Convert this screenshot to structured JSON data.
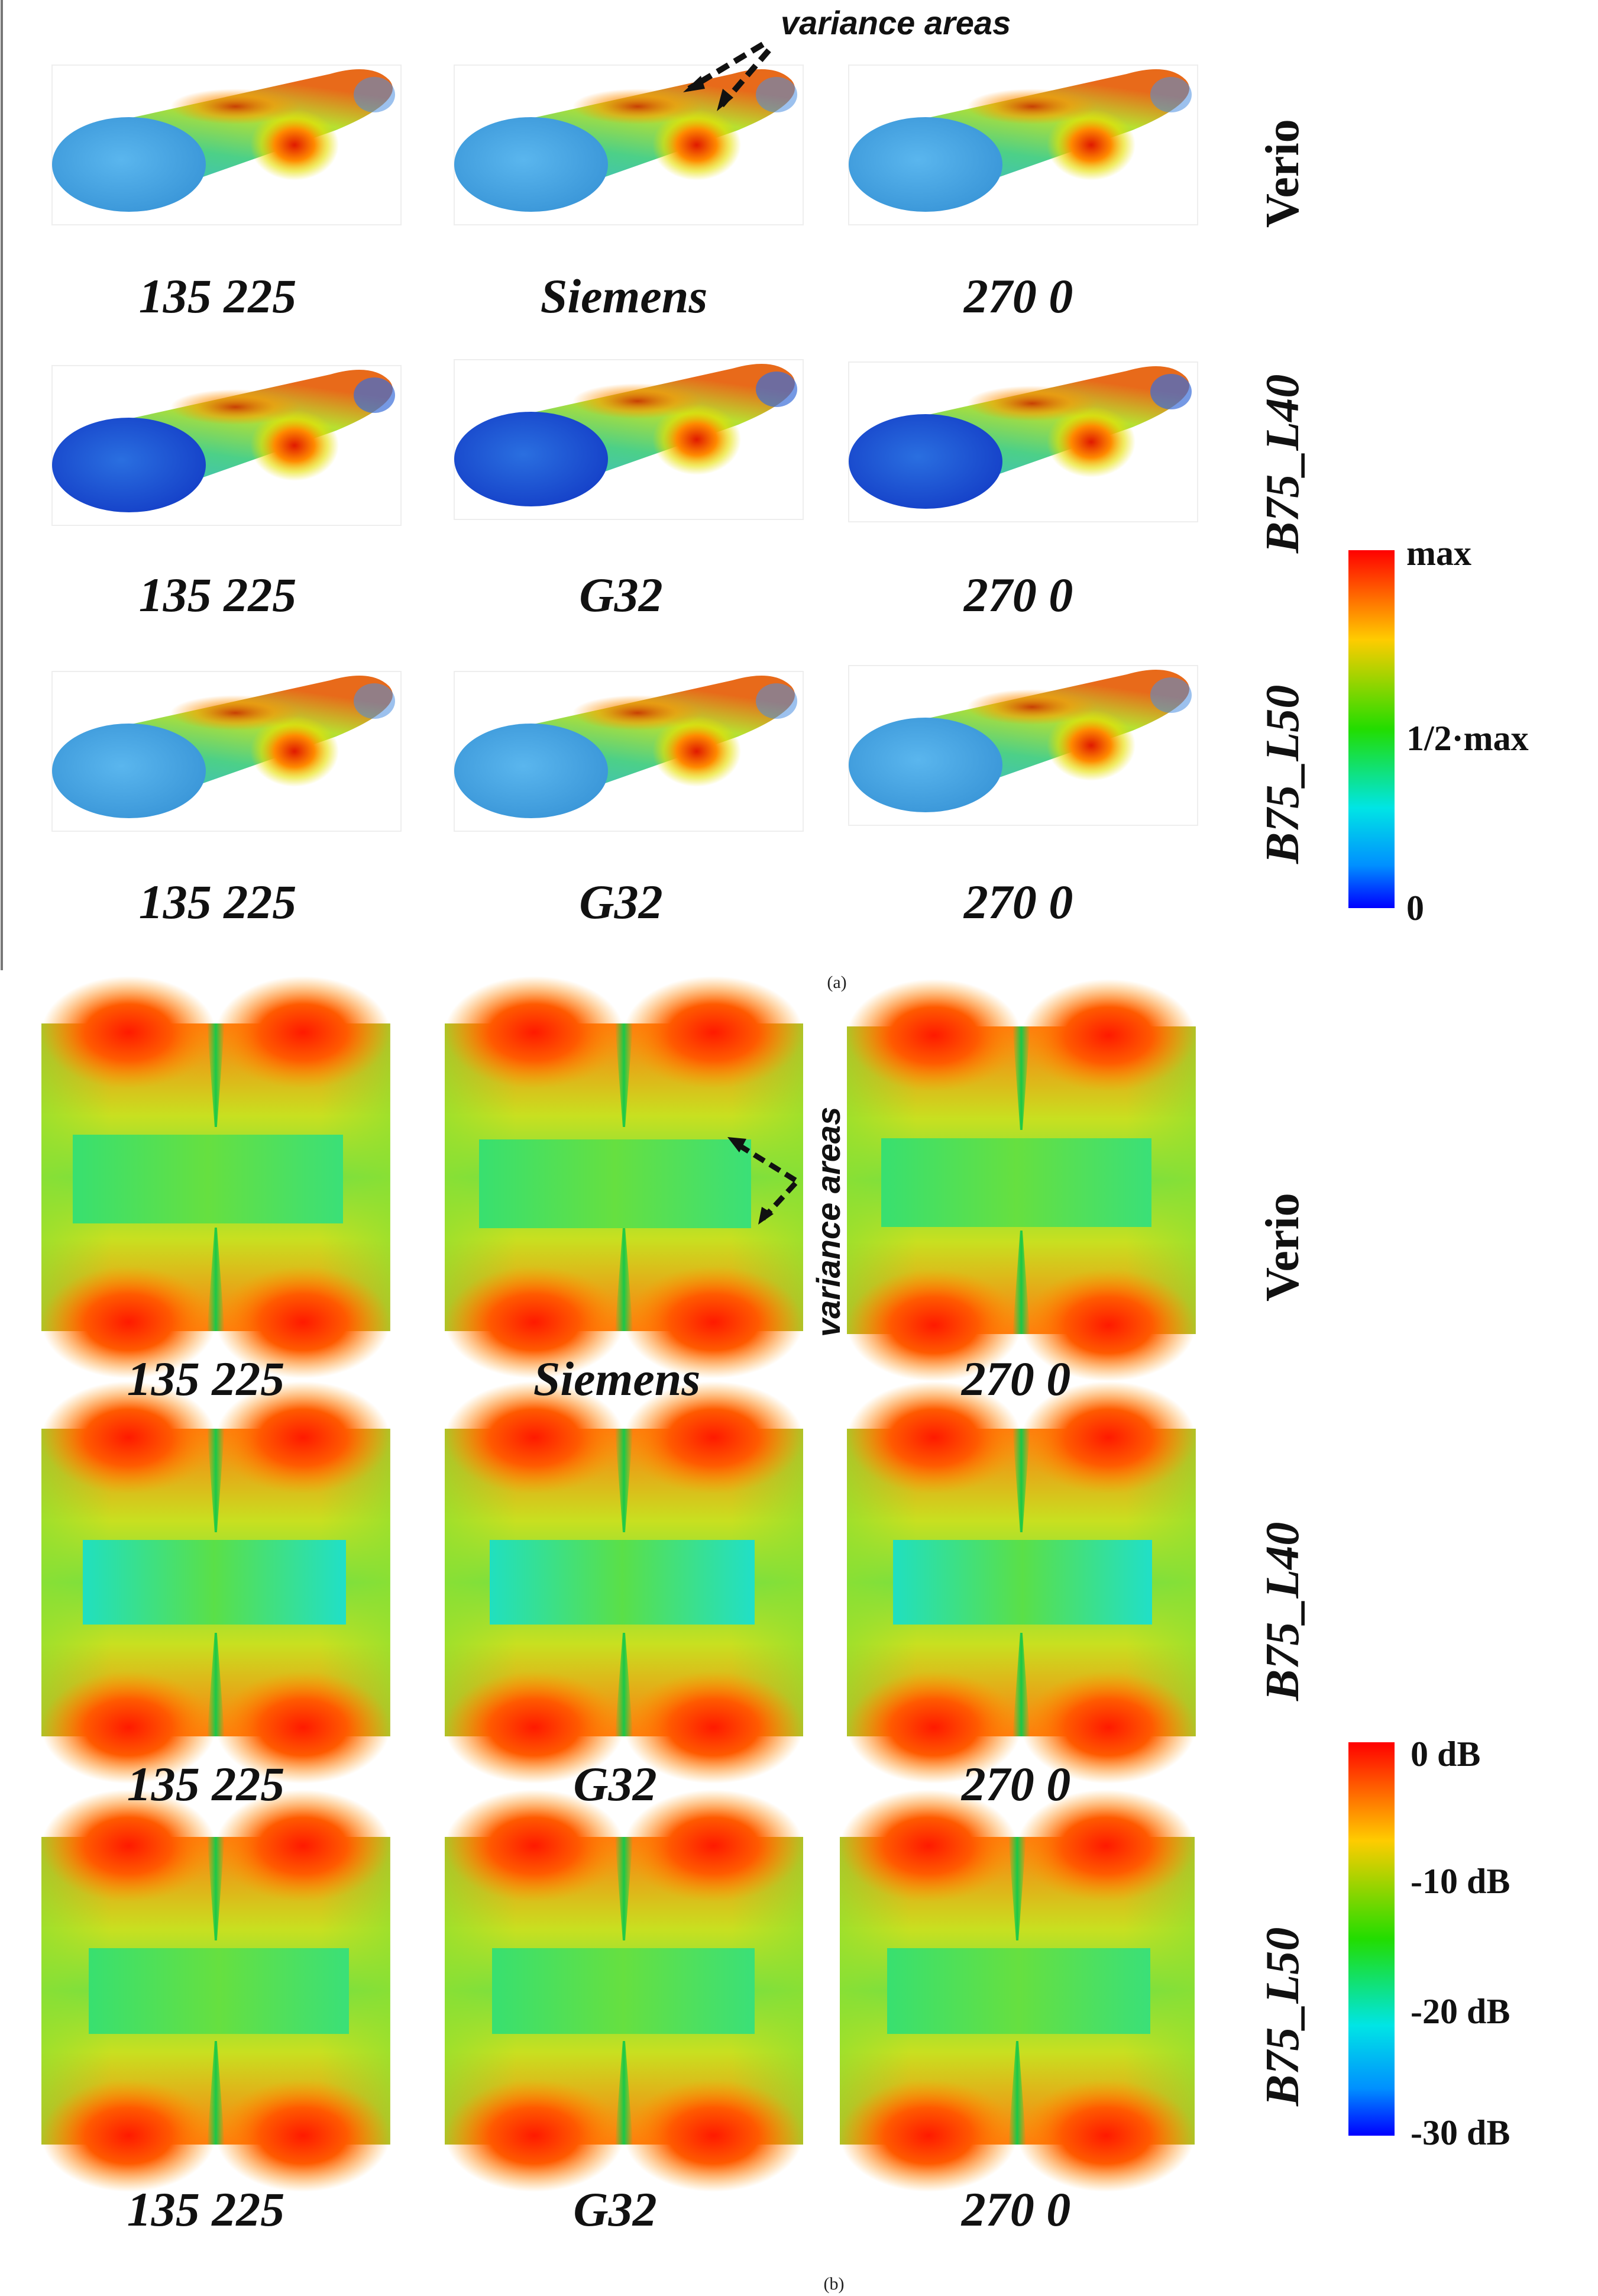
{
  "panel_a": {
    "caption": "(a)",
    "annotation": "variance areas",
    "rows": [
      {
        "group": "Verio",
        "labels": [
          "135 225",
          "Siemens",
          "270 0"
        ]
      },
      {
        "group": "B75_L40",
        "labels": [
          "135 225",
          "G32",
          "270 0"
        ]
      },
      {
        "group": "B75_L50",
        "labels": [
          "135 225",
          "G32",
          "270 0"
        ]
      }
    ],
    "colorbar": {
      "top": "max",
      "mid": "1/2·max",
      "bottom": "0"
    }
  },
  "panel_b": {
    "caption": "(b)",
    "annotation": "variance areas",
    "rows": [
      {
        "group": "Verio",
        "labels": [
          "135 225",
          "Siemens",
          "270 0"
        ]
      },
      {
        "group": "B75_L40",
        "labels": [
          "135 225",
          "G32",
          "270 0"
        ]
      },
      {
        "group": "B75_L50",
        "labels": [
          "135 225",
          "G32",
          "270 0"
        ]
      }
    ],
    "colorbar": {
      "ticks": [
        "0 dB",
        "-10 dB",
        "-20 dB",
        "-30 dB"
      ]
    }
  },
  "colors": {
    "red": "#ff1a00",
    "orange": "#ff8c00",
    "yellow": "#e8f000",
    "green": "#22dd22",
    "cyan": "#00e0f0",
    "blue": "#0010ff",
    "light_blue": "#3aa8e8"
  }
}
